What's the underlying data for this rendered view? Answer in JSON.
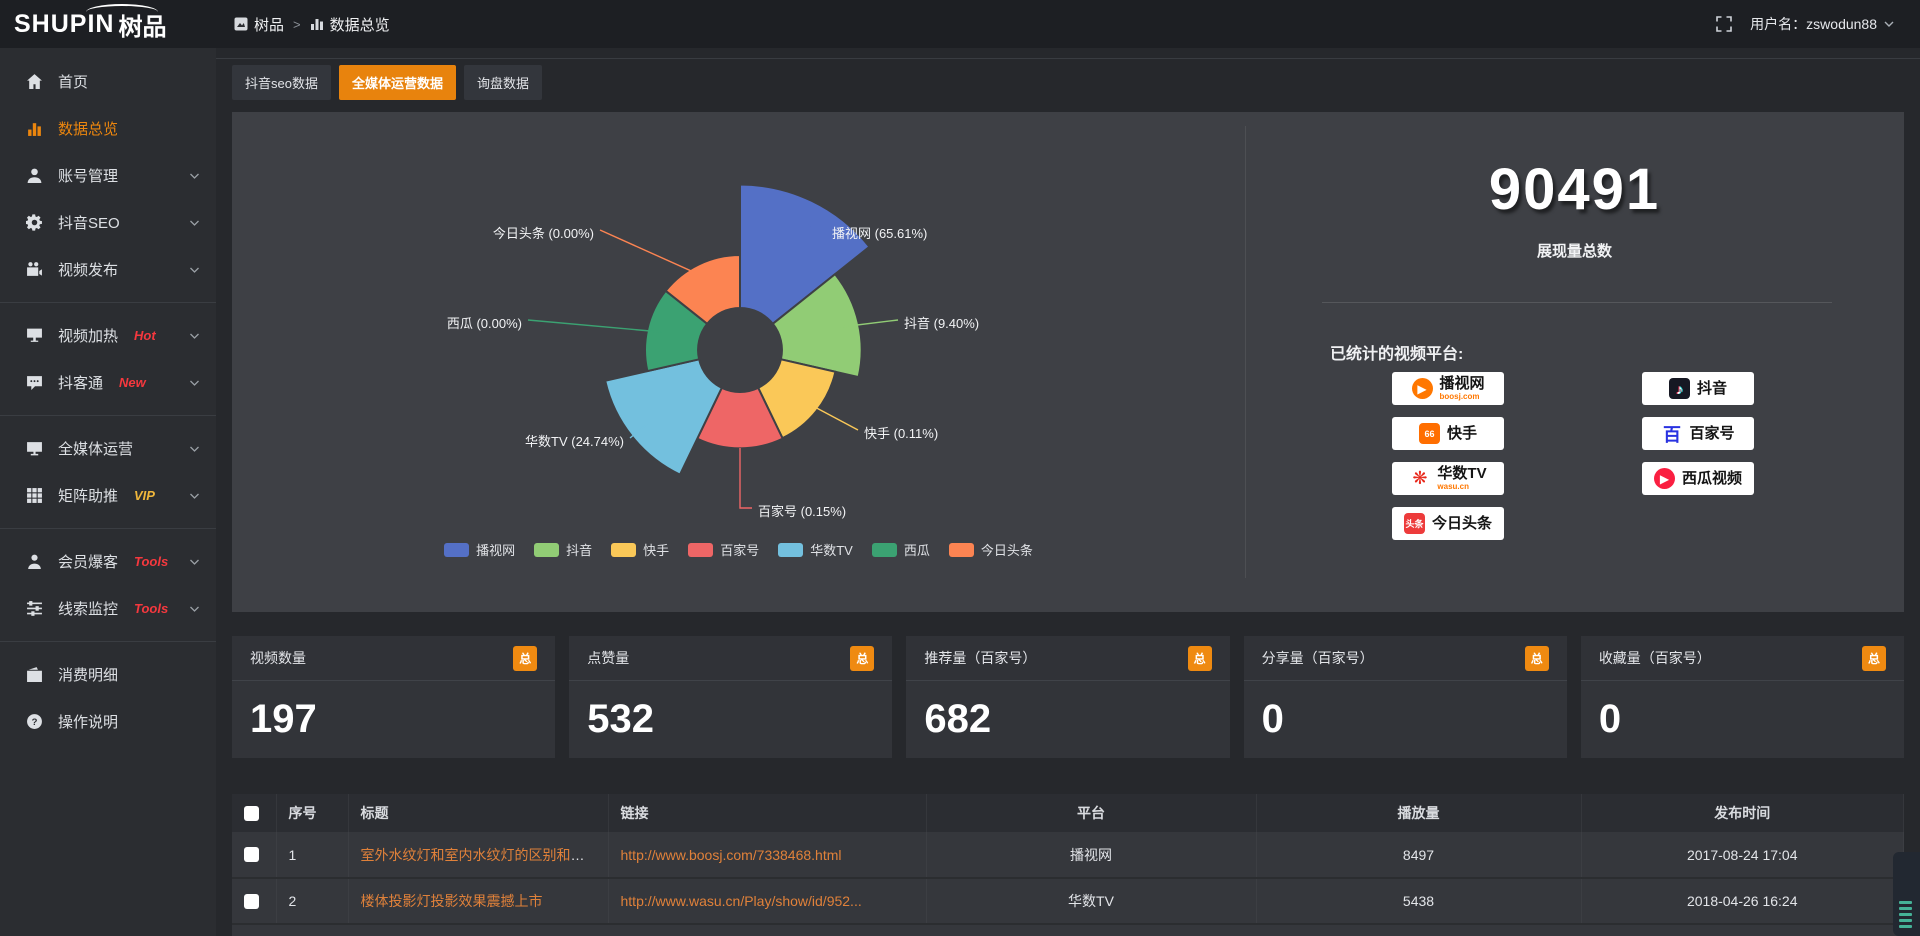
{
  "brand": {
    "logo_en": "SHUPIN",
    "logo_cn": "树品"
  },
  "topbar": {
    "breadcrumb": {
      "root": "树品",
      "separator": ">",
      "current": "数据总览"
    },
    "username": "用户名：zswodun88"
  },
  "sidebar": {
    "items": [
      {
        "label": "首页",
        "icon": "home-icon"
      },
      {
        "label": "数据总览",
        "icon": "bar-chart-icon",
        "active": true
      },
      {
        "label": "账号管理",
        "icon": "user-icon",
        "expandable": true
      },
      {
        "label": "抖音SEO",
        "icon": "gear-icon",
        "expandable": true
      },
      {
        "label": "视频发布",
        "icon": "video-camera-icon",
        "expandable": true,
        "divider_after": true
      },
      {
        "label": "视频加热",
        "icon": "screen-icon",
        "tag": "Hot",
        "tag_color": "#f5383e",
        "expandable": true
      },
      {
        "label": "抖客通",
        "icon": "comment-icon",
        "tag": "New",
        "tag_color": "#f5383e",
        "expandable": true,
        "divider_after": true
      },
      {
        "label": "全媒体运营",
        "icon": "monitor-icon",
        "expandable": true
      },
      {
        "label": "矩阵助推",
        "icon": "grid-icon",
        "tag": "VIP",
        "tag_color": "#f0b73b",
        "expandable": true,
        "divider_after": true
      },
      {
        "label": "会员爆客",
        "icon": "person-icon",
        "tag": "Tools",
        "tag_color": "#f5383e",
        "expandable": true
      },
      {
        "label": "线索监控",
        "icon": "sliders-icon",
        "tag": "Tools",
        "tag_color": "#f5383e",
        "expandable": true,
        "divider_after": true
      },
      {
        "label": "消费明细",
        "icon": "wallet-icon"
      },
      {
        "label": "操作说明",
        "icon": "question-icon"
      }
    ]
  },
  "tabs": [
    {
      "label": "抖音seo数据",
      "active": false
    },
    {
      "label": "全媒体运营数据",
      "active": true
    },
    {
      "label": "询盘数据",
      "active": false
    }
  ],
  "chart_data": {
    "type": "pie",
    "variant": "nightingale_rose",
    "unit": "percent",
    "series": [
      {
        "name": "播视网",
        "value": 65.61,
        "color": "#5470c6"
      },
      {
        "name": "抖音",
        "value": 9.4,
        "color": "#91cc75"
      },
      {
        "name": "快手",
        "value": 0.11,
        "color": "#fac858"
      },
      {
        "name": "百家号",
        "value": 0.15,
        "color": "#ee6666"
      },
      {
        "name": "华数TV",
        "value": 24.74,
        "color": "#73c0de"
      },
      {
        "name": "西瓜",
        "value": 0.0,
        "color": "#3ba272"
      },
      {
        "name": "今日头条",
        "value": 0.0,
        "color": "#fc8452"
      }
    ],
    "label_format": "{name} ({value}%)",
    "legend": [
      "播视网",
      "抖音",
      "快手",
      "百家号",
      "华数TV",
      "西瓜",
      "今日头条"
    ],
    "legend_position": "bottom"
  },
  "summary": {
    "total_value": "90491",
    "total_label": "展现量总数",
    "platforms_label": "已统计的视频平台:",
    "platform_columns": [
      [
        {
          "name": "播视网",
          "sub": "boosj.com",
          "icon": "boosj-icon",
          "icon_glyph": "▶",
          "icon_bg": "#ff7700",
          "icon_fg": "#ffffff",
          "icon_shape": "circle"
        },
        {
          "name": "快手",
          "icon": "kuaishou-icon",
          "icon_glyph": "66",
          "icon_bg": "#ff6e00",
          "icon_fg": "#ffffff",
          "icon_shape": "rounded"
        },
        {
          "name": "华数TV",
          "sub": "wasu.cn",
          "icon": "wasu-icon",
          "icon_glyph": "❋",
          "icon_bg": "",
          "icon_fg": "#e8291c",
          "icon_shape": "plain"
        },
        {
          "name": "今日头条",
          "icon": "toutiao-icon",
          "icon_glyph": "头条",
          "icon_bg": "#ed3b3b",
          "icon_fg": "#ffffff",
          "icon_shape": "rounded"
        }
      ],
      [
        {
          "name": "抖音",
          "icon": "douyin-icon",
          "icon_glyph": "♪",
          "icon_bg": "#161823",
          "icon_fg": "#ffffff",
          "icon_shape": "rounded"
        },
        {
          "name": "百家号",
          "icon": "baijiahao-icon",
          "icon_glyph": "百",
          "icon_bg": "",
          "icon_fg": "#2932e1",
          "icon_shape": "plain"
        },
        {
          "name": "西瓜视频",
          "icon": "xigua-icon",
          "icon_glyph": "▶",
          "icon_bg": "#fa1f41",
          "icon_fg": "#ffffff",
          "icon_shape": "circle"
        }
      ]
    ]
  },
  "stat_cards": [
    {
      "title": "视频数量",
      "badge": "总",
      "value": "197"
    },
    {
      "title": "点赞量",
      "badge": "总",
      "value": "532"
    },
    {
      "title": "推荐量（百家号）",
      "badge": "总",
      "value": "682"
    },
    {
      "title": "分享量（百家号）",
      "badge": "总",
      "value": "0"
    },
    {
      "title": "收藏量（百家号）",
      "badge": "总",
      "value": "0"
    }
  ],
  "table": {
    "headers": [
      "序号",
      "标题",
      "链接",
      "平台",
      "播放量",
      "发布时间"
    ],
    "rows": [
      {
        "no": "1",
        "title": "室外水纹灯和室内水纹灯的区别和简介",
        "link": "http://www.boosj.com/7338468.html",
        "platform": "播视网",
        "plays": "8497",
        "time": "2017-08-24 17:04"
      },
      {
        "no": "2",
        "title": "楼体投影灯投影效果震撼上市",
        "link": "http://www.wasu.cn/Play/show/id/952...",
        "platform": "华数TV",
        "plays": "5438",
        "time": "2018-04-26 16:24"
      }
    ]
  },
  "accent_colors": {
    "orange": "#e8830d",
    "badge_orange": "#ef8a11",
    "link_orange": "#e0813a"
  }
}
